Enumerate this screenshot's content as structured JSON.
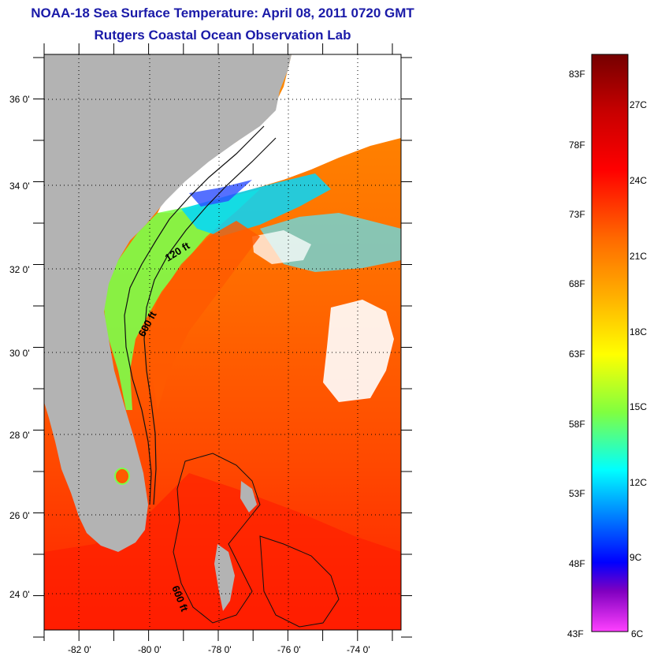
{
  "header": {
    "title": "NOAA-18 Sea Surface Temperature:  April 08, 2011 0720 GMT",
    "subtitle": "Rutgers Coastal Ocean Observation Lab"
  },
  "map": {
    "lat_labels": [
      "36 0'",
      "34 0'",
      "32 0'",
      "30 0'",
      "28 0'",
      "26 0'",
      "24 0'"
    ],
    "lon_labels": [
      "-82 0'",
      "-80 0'",
      "-78 0'",
      "-76 0'",
      "-74 0'"
    ],
    "lat_range": [
      23,
      37.1
    ],
    "lon_range": [
      -83,
      -73
    ],
    "isobath_labels": [
      "120 ft",
      "600 ft",
      "600 ft"
    ],
    "colors": {
      "land": "#b3b3b3",
      "cloud": "#ffffff"
    }
  },
  "colorbar": {
    "fahrenheit_labels": [
      "83F",
      "78F",
      "73F",
      "68F",
      "63F",
      "58F",
      "53F",
      "48F",
      "43F"
    ],
    "celsius_labels": [
      "27C",
      "24C",
      "21C",
      "18C",
      "15C",
      "12C",
      "9C",
      "6C"
    ],
    "colors": [
      "#750000",
      "#c80000",
      "#ff0000",
      "#ff6a00",
      "#ffb000",
      "#ffff00",
      "#80ff40",
      "#00ffff",
      "#0080ff",
      "#0000ff",
      "#8000c0",
      "#ff40ff"
    ]
  }
}
